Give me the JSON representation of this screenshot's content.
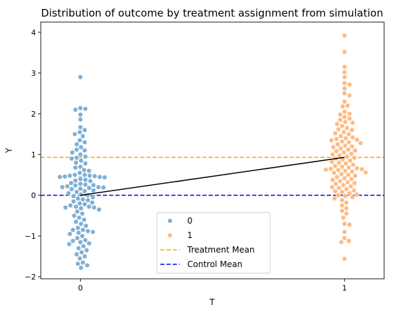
{
  "chart_data": {
    "type": "scatter",
    "subtype": "swarm",
    "title": "Distribution of outcome by treatment assignment from simulation",
    "xlabel": "T",
    "ylabel": "Y",
    "categories": [
      "0",
      "1"
    ],
    "xlim": [
      -0.15,
      1.15
    ],
    "ylim": [
      -2.05,
      4.25
    ],
    "yticks": [
      -2,
      -1,
      0,
      1,
      2,
      3,
      4
    ],
    "yticklabels": [
      "−2",
      "−1",
      "0",
      "1",
      "2",
      "3",
      "4"
    ],
    "grid": false,
    "legend": {
      "placement": "lower-center",
      "entries": [
        {
          "label": "0",
          "kind": "marker",
          "color": "#7fb0d5"
        },
        {
          "label": "1",
          "kind": "marker",
          "color": "#ffbb82"
        },
        {
          "label": "Treatment Mean",
          "kind": "dashed-line",
          "color": "#ffa500"
        },
        {
          "label": "Control Mean",
          "kind": "dashed-line",
          "color": "#0000ff"
        }
      ]
    },
    "series": [
      {
        "name": "0",
        "x_category": "0",
        "color": "#7fb0d5",
        "values": [
          2.9,
          2.12,
          2.14,
          2.1,
          1.98,
          1.86,
          1.67,
          1.6,
          1.55,
          1.5,
          1.45,
          1.35,
          1.3,
          1.25,
          1.18,
          1.12,
          1.1,
          1.05,
          1.0,
          0.95,
          0.92,
          0.9,
          0.85,
          0.8,
          0.78,
          0.7,
          0.68,
          0.62,
          0.6,
          0.55,
          0.5,
          0.5,
          0.48,
          0.48,
          0.47,
          0.46,
          0.45,
          0.45,
          0.44,
          0.42,
          0.4,
          0.38,
          0.36,
          0.35,
          0.3,
          0.28,
          0.26,
          0.25,
          0.24,
          0.22,
          0.2,
          0.2,
          0.19,
          0.18,
          0.16,
          0.15,
          0.12,
          0.1,
          0.08,
          0.05,
          0.02,
          0.0,
          -0.02,
          -0.05,
          -0.08,
          -0.1,
          -0.12,
          -0.15,
          -0.18,
          -0.2,
          -0.22,
          -0.25,
          -0.28,
          -0.28,
          -0.3,
          -0.3,
          -0.32,
          -0.35,
          -0.4,
          -0.45,
          -0.5,
          -0.55,
          -0.6,
          -0.65,
          -0.7,
          -0.75,
          -0.8,
          -0.85,
          -0.85,
          -0.88,
          -0.9,
          -0.92,
          -0.95,
          -1.0,
          -1.05,
          -1.1,
          -1.12,
          -1.15,
          -1.18,
          -1.2,
          -1.25,
          -1.3,
          -1.35,
          -1.4,
          -1.45,
          -1.5,
          -1.55,
          -1.65,
          -1.68,
          -1.72,
          -1.78
        ]
      },
      {
        "name": "1",
        "x_category": "1",
        "color": "#ffbb82",
        "values": [
          3.92,
          3.52,
          3.15,
          3.02,
          2.9,
          2.75,
          2.72,
          2.62,
          2.5,
          2.45,
          2.3,
          2.2,
          2.18,
          2.05,
          2.0,
          1.98,
          1.92,
          1.88,
          1.85,
          1.8,
          1.78,
          1.75,
          1.7,
          1.65,
          1.62,
          1.6,
          1.55,
          1.52,
          1.5,
          1.45,
          1.42,
          1.4,
          1.38,
          1.36,
          1.35,
          1.32,
          1.3,
          1.28,
          1.25,
          1.22,
          1.2,
          1.18,
          1.15,
          1.12,
          1.1,
          1.08,
          1.05,
          1.02,
          1.0,
          0.98,
          0.95,
          0.92,
          0.9,
          0.88,
          0.85,
          0.82,
          0.8,
          0.78,
          0.75,
          0.72,
          0.7,
          0.68,
          0.66,
          0.65,
          0.64,
          0.63,
          0.62,
          0.6,
          0.58,
          0.56,
          0.55,
          0.52,
          0.5,
          0.48,
          0.45,
          0.42,
          0.4,
          0.38,
          0.35,
          0.32,
          0.3,
          0.28,
          0.25,
          0.22,
          0.2,
          0.18,
          0.15,
          0.12,
          0.1,
          0.08,
          0.05,
          0.02,
          0.0,
          -0.02,
          -0.05,
          -0.08,
          -0.12,
          -0.18,
          -0.25,
          -0.32,
          -0.38,
          -0.45,
          -0.55,
          -0.7,
          -0.72,
          -0.9,
          -1.05,
          -1.12,
          -1.15,
          -1.56
        ]
      }
    ],
    "reference_lines": [
      {
        "name": "Treatment Mean",
        "y": 0.93,
        "color": "#ffa500",
        "style": "dashed"
      },
      {
        "name": "Control Mean",
        "y": 0.0,
        "color": "#0000ff",
        "style": "dashed"
      }
    ],
    "connecting_line": {
      "color": "#000000",
      "points": [
        {
          "x": 0,
          "y": 0.0
        },
        {
          "x": 1,
          "y": 0.93
        }
      ]
    }
  }
}
